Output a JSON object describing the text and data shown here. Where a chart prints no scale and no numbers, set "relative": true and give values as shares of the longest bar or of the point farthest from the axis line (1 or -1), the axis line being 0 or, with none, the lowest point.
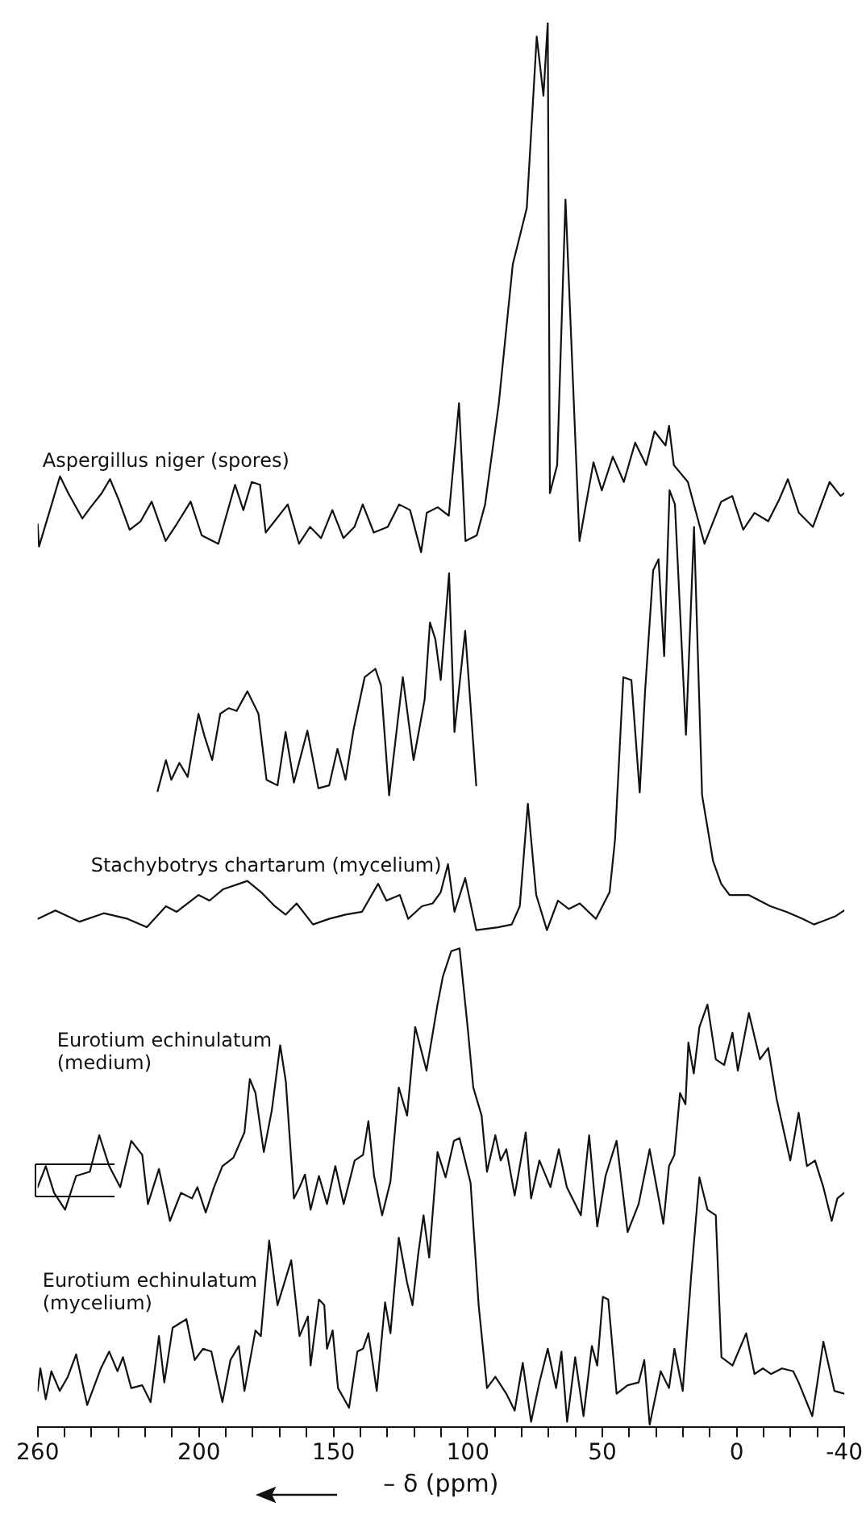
{
  "chart_data": {
    "type": "line",
    "xlabel": "– δ (ppm)",
    "relative": true,
    "marker": "none",
    "line_style": "solid",
    "legend": false,
    "xlim": [
      260,
      -40
    ],
    "xticks": [
      260,
      {
        "value": 250,
        "label": null
      },
      {
        "value": 240,
        "label": null
      },
      {
        "value": 230,
        "label": null
      },
      {
        "value": 220,
        "label": null
      },
      {
        "value": 210,
        "label": null
      },
      200,
      {
        "value": 190,
        "label": null
      },
      {
        "value": 180,
        "label": null
      },
      {
        "value": 170,
        "label": null
      },
      {
        "value": 160,
        "label": null
      },
      150,
      {
        "value": 140,
        "label": null
      },
      {
        "value": 130,
        "label": null
      },
      {
        "value": 120,
        "label": null
      },
      {
        "value": 110,
        "label": null
      },
      100,
      {
        "value": 90,
        "label": null
      },
      {
        "value": 80,
        "label": null
      },
      {
        "value": 70,
        "label": null
      },
      {
        "value": 60,
        "label": null
      },
      50,
      {
        "value": 40,
        "label": null
      },
      {
        "value": 30,
        "label": null
      },
      {
        "value": 20,
        "label": null
      },
      {
        "value": 10,
        "label": null
      },
      0,
      {
        "value": -10,
        "label": null
      },
      {
        "value": -20,
        "label": null
      },
      {
        "value": -30,
        "label": null
      },
      -40
    ],
    "series": [
      {
        "name": "Aspergillus niger (spores)",
        "color": "#111111",
        "x": [
          260,
          259.5,
          254.8,
          251.7,
          248.6,
          243.4,
          240.3,
          236.2,
          233.1,
          230.0,
          225.8,
          221.7,
          217.6,
          212.4,
          208.3,
          203.1,
          199.0,
          192.8,
          186.6,
          183.5,
          180.4,
          177.3,
          175.2,
          167.0,
          162.8,
          158.7,
          154.6,
          150.4,
          146.3,
          142.2,
          139.1,
          135.0,
          129.8,
          125.6,
          121.5,
          117.4,
          115.3,
          111.2,
          107.1,
          103.3,
          100.9,
          96.7,
          93.6,
          88.5,
          83.3,
          81.2,
          78.1,
          74.4,
          71.9,
          70.3,
          69.5,
          66.8,
          63.7,
          58.5,
          53.3,
          50.2,
          46.1,
          42.0,
          37.8,
          33.7,
          30.6,
          26.5,
          25.2,
          23.4,
          18.2,
          12.0,
          5.8,
          1.7,
          -2.4,
          -6.6,
          -11.7,
          -15.9,
          -19.0,
          -23.1,
          -28.3,
          -34.5,
          -38.6,
          -40
        ],
        "values": [
          0.643,
          0.627,
          0.657,
          0.677,
          0.665,
          0.647,
          0.655,
          0.665,
          0.675,
          0.661,
          0.639,
          0.645,
          0.659,
          0.631,
          0.643,
          0.659,
          0.635,
          0.629,
          0.671,
          0.653,
          0.673,
          0.671,
          0.637,
          0.657,
          0.629,
          0.641,
          0.633,
          0.653,
          0.633,
          0.641,
          0.657,
          0.637,
          0.641,
          0.657,
          0.653,
          0.623,
          0.651,
          0.655,
          0.649,
          0.729,
          0.631,
          0.635,
          0.657,
          0.729,
          0.828,
          0.844,
          0.868,
          0.99,
          0.948,
          1.0,
          0.665,
          0.685,
          0.874,
          0.631,
          0.687,
          0.667,
          0.691,
          0.673,
          0.701,
          0.685,
          0.709,
          0.699,
          0.713,
          0.685,
          0.673,
          0.629,
          0.659,
          0.663,
          0.639,
          0.651,
          0.645,
          0.661,
          0.675,
          0.651,
          0.641,
          0.673,
          0.663,
          0.665
        ]
      },
      {
        "color": "#111111",
        "x": [
          215.4,
          212.3,
          210.3,
          207.3,
          204.2,
          200.2,
          198.1,
          195.1,
          192.1,
          189.0,
          186.0,
          182.0,
          177.9,
          174.9,
          170.8,
          167.8,
          164.7,
          159.7,
          155.6,
          151.6,
          148.5,
          145.5,
          142.5,
          138.4,
          134.4,
          132.3,
          129.3,
          124.2,
          120.2,
          116.1,
          114.1,
          112.1,
          110.1,
          107.0,
          105.0,
          101.0,
          96.9
        ],
        "values": [
          0.453,
          0.475,
          0.461,
          0.473,
          0.463,
          0.508,
          0.493,
          0.475,
          0.508,
          0.512,
          0.51,
          0.524,
          0.508,
          0.461,
          0.457,
          0.495,
          0.459,
          0.496,
          0.455,
          0.457,
          0.483,
          0.461,
          0.497,
          0.534,
          0.54,
          0.528,
          0.45,
          0.534,
          0.475,
          0.518,
          0.573,
          0.561,
          0.532,
          0.608,
          0.495,
          0.567,
          0.457
        ]
      },
      {
        "name": "Stachybotrys chartarum (mycelium)",
        "color": "#111111",
        "x": [
          260,
          253.4,
          244.4,
          235.4,
          226.5,
          219.4,
          212.3,
          208.3,
          200.2,
          196.1,
          191.1,
          182.0,
          176.9,
          171.8,
          167.8,
          163.7,
          157.6,
          151.6,
          145.5,
          139.4,
          133.4,
          130.3,
          125.3,
          122.2,
          117.1,
          113.1,
          110.1,
          107.4,
          105.0,
          101.0,
          96.9,
          88.8,
          83.7,
          80.7,
          77.7,
          74.6,
          70.6,
          66.5,
          62.5,
          58.4,
          52.4,
          47.3,
          45.3,
          42.2,
          39.2,
          36.1,
          34.1,
          31.1,
          29.1,
          27.0,
          25.0,
          23.0,
          18.9,
          15.9,
          12.9,
          8.8,
          5.8,
          2.7,
          -4.4,
          -12.5,
          -18.5,
          -24.6,
          -28.7,
          -36.8,
          -40
        ],
        "values": [
          0.362,
          0.368,
          0.36,
          0.366,
          0.362,
          0.356,
          0.371,
          0.367,
          0.379,
          0.375,
          0.383,
          0.389,
          0.381,
          0.371,
          0.365,
          0.373,
          0.358,
          0.362,
          0.365,
          0.367,
          0.387,
          0.375,
          0.379,
          0.362,
          0.371,
          0.373,
          0.381,
          0.401,
          0.367,
          0.391,
          0.354,
          0.356,
          0.358,
          0.371,
          0.444,
          0.379,
          0.354,
          0.375,
          0.369,
          0.373,
          0.362,
          0.381,
          0.418,
          0.534,
          0.532,
          0.452,
          0.524,
          0.61,
          0.618,
          0.549,
          0.667,
          0.657,
          0.493,
          0.641,
          0.45,
          0.403,
          0.387,
          0.379,
          0.379,
          0.371,
          0.367,
          0.362,
          0.358,
          0.364,
          0.368
        ]
      },
      {
        "name": "Eurotium echinulatum (medium)",
        "color": "#111111",
        "x": [
          260,
          257.0,
          253.9,
          249.8,
          245.7,
          240.6,
          237.1,
          233.4,
          229.3,
          225.2,
          221.1,
          219.0,
          214.9,
          210.8,
          206.7,
          202.6,
          200.6,
          197.5,
          194.4,
          191.3,
          187.2,
          183.1,
          181.1,
          179.0,
          175.9,
          172.9,
          169.8,
          167.7,
          164.7,
          162.6,
          160.6,
          158.5,
          155.4,
          152.4,
          149.3,
          146.2,
          142.1,
          139.0,
          137.0,
          134.9,
          131.9,
          128.8,
          125.7,
          122.6,
          119.6,
          115.4,
          111.3,
          109.3,
          106.2,
          103.1,
          100.1,
          98.0,
          94.9,
          92.9,
          89.8,
          87.8,
          85.7,
          82.6,
          78.5,
          76.5,
          73.4,
          69.3,
          66.2,
          63.2,
          58.0,
          54.9,
          51.9,
          48.8,
          44.7,
          40.6,
          36.5,
          32.4,
          27.3,
          25.2,
          23.2,
          21.1,
          19.1,
          18.0,
          16.0,
          13.9,
          10.9,
          7.8,
          4.7,
          1.6,
          -0.4,
          -4.5,
          -8.6,
          -11.7,
          -14.8,
          -19.9,
          -23.0,
          -26.1,
          -29.1,
          -32.2,
          -35.3,
          -37.4,
          -40
        ],
        "values": [
          0.171,
          0.186,
          0.167,
          0.155,
          0.179,
          0.182,
          0.208,
          0.186,
          0.171,
          0.204,
          0.194,
          0.159,
          0.184,
          0.147,
          0.167,
          0.163,
          0.171,
          0.153,
          0.171,
          0.186,
          0.192,
          0.21,
          0.248,
          0.238,
          0.196,
          0.226,
          0.272,
          0.246,
          0.163,
          0.171,
          0.18,
          0.155,
          0.179,
          0.159,
          0.186,
          0.159,
          0.19,
          0.194,
          0.218,
          0.179,
          0.151,
          0.175,
          0.242,
          0.222,
          0.285,
          0.254,
          0.301,
          0.321,
          0.339,
          0.341,
          0.285,
          0.242,
          0.222,
          0.182,
          0.208,
          0.19,
          0.198,
          0.165,
          0.21,
          0.163,
          0.19,
          0.171,
          0.198,
          0.171,
          0.151,
          0.208,
          0.143,
          0.179,
          0.204,
          0.139,
          0.159,
          0.198,
          0.145,
          0.186,
          0.194,
          0.238,
          0.23,
          0.274,
          0.252,
          0.285,
          0.301,
          0.262,
          0.258,
          0.281,
          0.254,
          0.295,
          0.262,
          0.27,
          0.234,
          0.19,
          0.224,
          0.186,
          0.19,
          0.171,
          0.147,
          0.163,
          0.167
        ]
      },
      {
        "name": "Eurotium echinulatum (mycelium)",
        "color": "#111111",
        "x": [
          260,
          259.0,
          257.0,
          254.9,
          251.8,
          248.8,
          245.7,
          241.6,
          236.5,
          233.4,
          230.3,
          228.3,
          225.2,
          221.1,
          218.0,
          214.9,
          212.9,
          209.8,
          204.7,
          201.6,
          198.5,
          195.4,
          191.3,
          188.3,
          185.2,
          183.1,
          179.0,
          177.0,
          173.9,
          170.8,
          165.7,
          162.6,
          159.5,
          158.5,
          155.4,
          153.4,
          152.4,
          150.3,
          148.3,
          144.2,
          141.1,
          139.0,
          137.0,
          133.9,
          130.8,
          128.8,
          125.7,
          122.6,
          120.6,
          118.5,
          116.5,
          114.4,
          111.3,
          108.3,
          105.2,
          103.1,
          99.0,
          96.0,
          92.9,
          89.8,
          85.7,
          82.6,
          79.6,
          76.5,
          73.4,
          70.3,
          67.2,
          65.2,
          63.1,
          60.1,
          57.0,
          53.9,
          51.9,
          49.8,
          47.8,
          44.7,
          40.6,
          36.5,
          34.4,
          32.4,
          28.3,
          25.2,
          23.2,
          20.1,
          17.0,
          13.9,
          10.9,
          7.8,
          5.7,
          1.6,
          -3.5,
          -6.6,
          -9.7,
          -12.7,
          -16.8,
          -21.0,
          -23.0,
          -28.1,
          -32.2,
          -36.3,
          -40
        ],
        "values": [
          0.026,
          0.042,
          0.02,
          0.04,
          0.026,
          0.036,
          0.052,
          0.016,
          0.042,
          0.054,
          0.04,
          0.05,
          0.028,
          0.03,
          0.018,
          0.065,
          0.032,
          0.071,
          0.077,
          0.048,
          0.056,
          0.054,
          0.018,
          0.048,
          0.058,
          0.026,
          0.069,
          0.065,
          0.133,
          0.087,
          0.119,
          0.065,
          0.079,
          0.044,
          0.091,
          0.087,
          0.056,
          0.069,
          0.028,
          0.014,
          0.054,
          0.056,
          0.067,
          0.026,
          0.089,
          0.067,
          0.135,
          0.103,
          0.087,
          0.123,
          0.151,
          0.121,
          0.196,
          0.178,
          0.204,
          0.206,
          0.174,
          0.087,
          0.028,
          0.036,
          0.024,
          0.012,
          0.046,
          0.004,
          0.032,
          0.056,
          0.028,
          0.054,
          0.004,
          0.05,
          0.008,
          0.058,
          0.044,
          0.093,
          0.091,
          0.024,
          0.03,
          0.032,
          0.048,
          0.002,
          0.04,
          0.028,
          0.056,
          0.026,
          0.107,
          0.178,
          0.155,
          0.151,
          0.05,
          0.044,
          0.067,
          0.038,
          0.042,
          0.038,
          0.042,
          0.04,
          0.032,
          0.008,
          0.061,
          0.026,
          0.024
        ]
      }
    ]
  }
}
